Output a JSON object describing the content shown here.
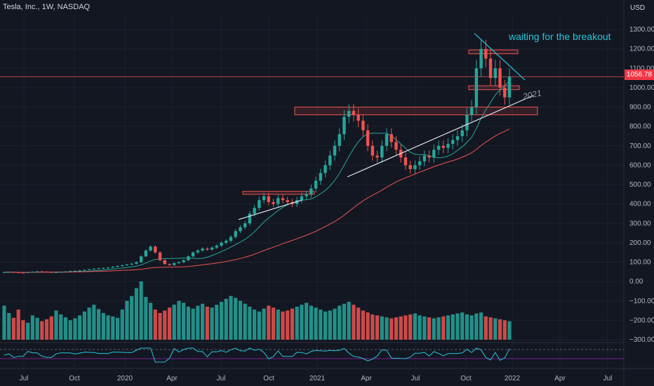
{
  "header": {
    "symbol": "Tesla, Inc., 1W, NASDAQ",
    "currency": "USD"
  },
  "current_price": "1056.78",
  "annotations": {
    "breakout": "waiting for the breakout",
    "year": "2021"
  },
  "colors": {
    "up": "#26a69a",
    "down": "#ef5350",
    "ma_short": "#26a69a",
    "ma_long": "#ef5350",
    "bg": "#131722"
  },
  "chart_data": {
    "type": "candlestick",
    "title": "Tesla, Inc., 1W, NASDAQ",
    "y_ticks": [
      "1300.00",
      "1200.00",
      "1100.00",
      "1000.00",
      "900.00",
      "800.00",
      "700.00",
      "600.00",
      "500.00",
      "400.00",
      "300.00",
      "200.00",
      "100.00",
      "0.00",
      "−100.00",
      "−200.00",
      "−300.00"
    ],
    "y_range": [
      -300,
      1380
    ],
    "x_ticks": [
      "Jul",
      "Oct",
      "2020",
      "Apr",
      "Jul",
      "Oct",
      "2021",
      "Apr",
      "Jul",
      "Oct",
      "2022",
      "Apr",
      "Jul"
    ],
    "close_series": [
      48,
      49,
      47,
      46,
      45,
      48,
      50,
      52,
      51,
      49,
      47,
      48,
      50,
      52,
      54,
      55,
      57,
      60,
      63,
      66,
      68,
      70,
      72,
      76,
      80,
      84,
      88,
      92,
      100,
      130,
      160,
      180,
      150,
      110,
      90,
      85,
      95,
      100,
      110,
      130,
      150,
      160,
      170,
      165,
      175,
      185,
      200,
      210,
      230,
      260,
      280,
      300,
      350,
      380,
      420,
      440,
      410,
      400,
      430,
      420,
      410,
      400,
      420,
      440,
      450,
      480,
      520,
      560,
      600,
      650,
      700,
      760,
      850,
      880,
      860,
      830,
      780,
      700,
      650,
      640,
      700,
      760,
      720,
      680,
      640,
      600,
      580,
      600,
      620,
      650,
      640,
      680,
      700,
      690,
      710,
      730,
      750,
      780,
      860,
      900,
      1100,
      1200,
      1150,
      1050,
      1100,
      1000,
      950,
      1057
    ],
    "range_boxes": [
      {
        "from": 860,
        "to": 900
      },
      {
        "from": 1175,
        "to": 1195
      },
      {
        "from": 990,
        "to": 1010
      },
      {
        "from": 450,
        "to": 465
      }
    ],
    "volume_series": [
      70,
      55,
      45,
      62,
      40,
      35,
      50,
      45,
      38,
      42,
      48,
      60,
      52,
      46,
      40,
      44,
      50,
      58,
      66,
      72,
      63,
      55,
      50,
      48,
      45,
      62,
      80,
      90,
      106,
      120,
      88,
      76,
      62,
      55,
      60,
      66,
      72,
      80,
      76,
      68,
      64,
      70,
      74,
      68,
      66,
      72,
      78,
      84,
      90,
      86,
      80,
      74,
      68,
      62,
      58,
      64,
      70,
      66,
      62,
      58,
      60,
      64,
      68,
      72,
      76,
      70,
      66,
      62,
      58,
      60,
      64,
      70,
      74,
      78,
      72,
      66,
      60,
      56,
      52,
      50,
      48,
      46,
      44,
      46,
      48,
      50,
      52,
      54,
      50,
      48,
      46,
      44,
      46,
      48,
      50,
      52,
      54,
      56,
      52,
      50,
      54,
      56,
      48,
      46,
      44,
      42,
      40,
      38
    ]
  }
}
